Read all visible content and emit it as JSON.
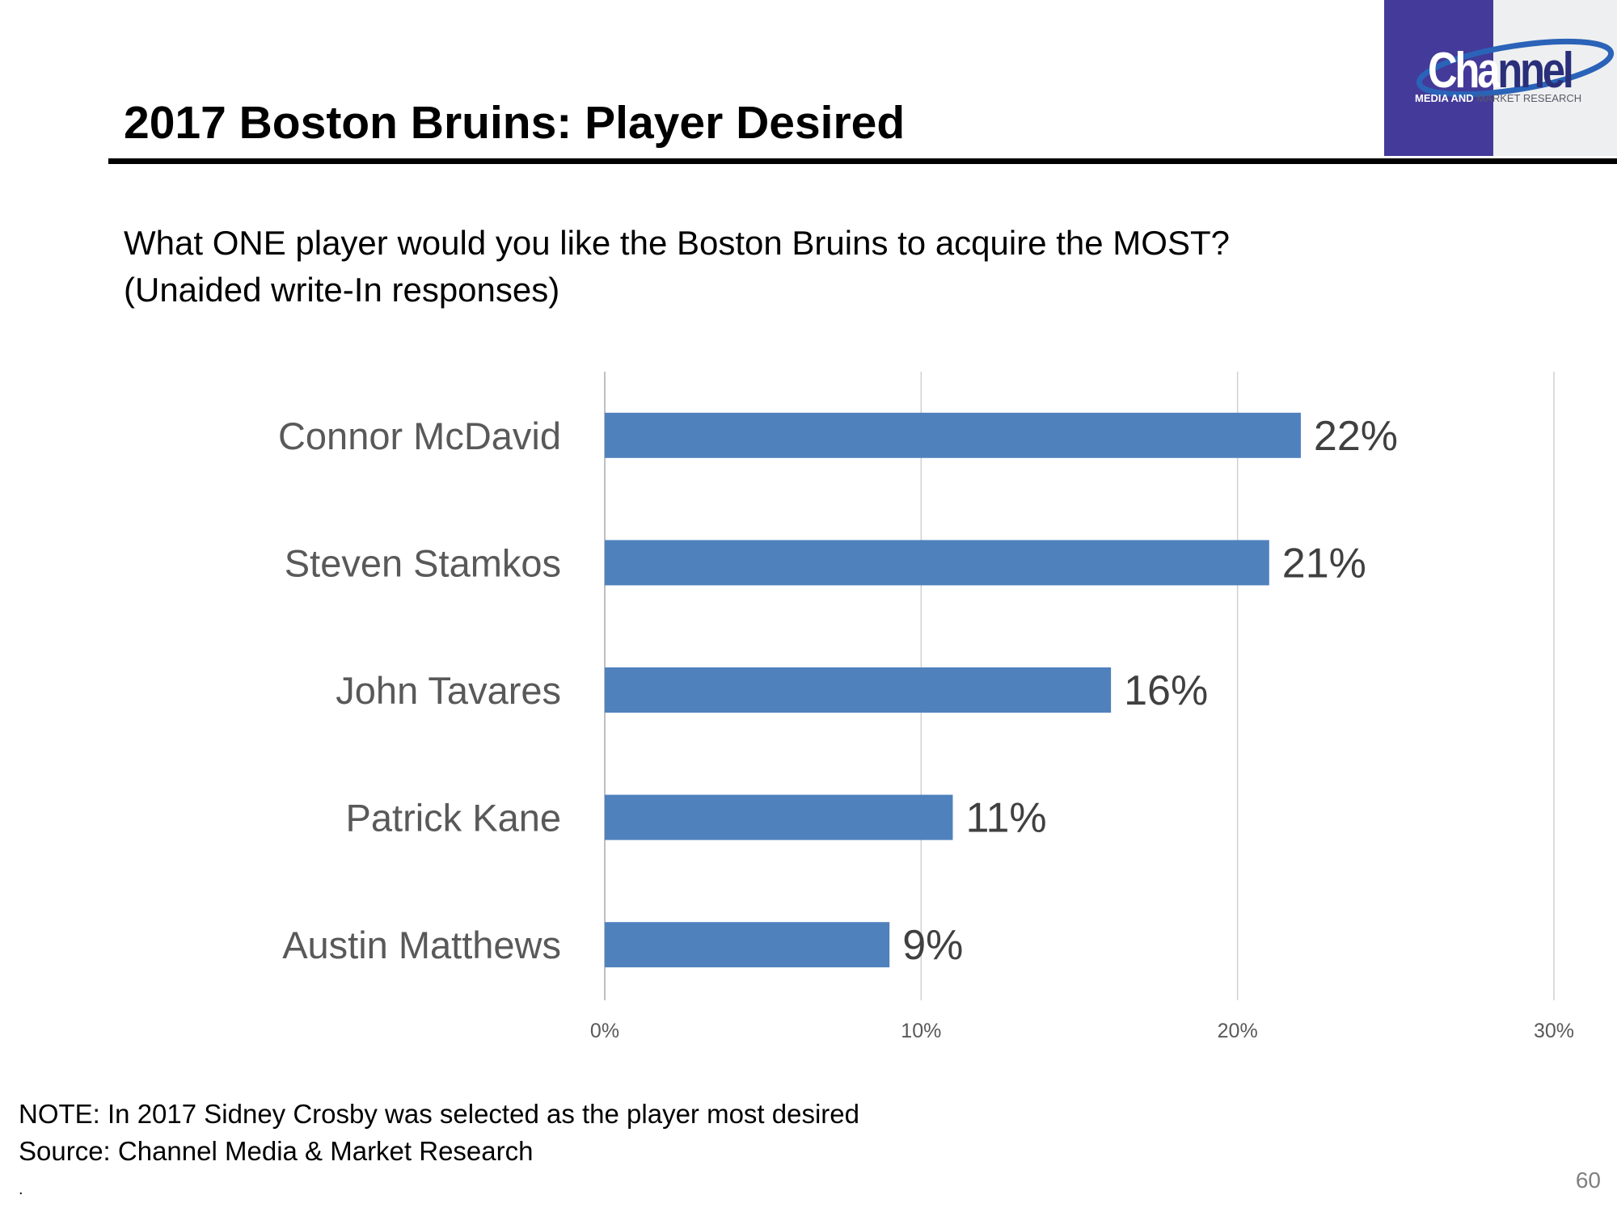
{
  "slide": {
    "title": "2017 Boston Bruins: Player Desired",
    "question_line1": "What ONE player would you like the Boston Bruins to acquire the MOST?",
    "question_line2": "(Unaided write-In responses)",
    "note": "NOTE: In 2017 Sidney Crosby was selected as the player most desired",
    "source": "Source: Channel Media & Market Research",
    "dot": ".",
    "page_number": "60"
  },
  "logo": {
    "word_part1": "Cha",
    "word_part2": "nnel",
    "tagline_part1": "MEDIA AND",
    "tagline_part2": "MARKET RESEARCH",
    "colors": {
      "left_panel": "#433a99",
      "right_panel": "#eeeff0",
      "swoosh": "#2a63b8"
    }
  },
  "chart_data": {
    "type": "bar",
    "orientation": "horizontal",
    "title": "",
    "xlabel": "",
    "ylabel": "",
    "categories": [
      "Connor McDavid",
      "Steven Stamkos",
      "John Tavares",
      "Patrick Kane",
      "Austin Matthews"
    ],
    "values": [
      22,
      21,
      16,
      11,
      9
    ],
    "data_labels": [
      "22%",
      "21%",
      "16%",
      "11%",
      "9%"
    ],
    "xlim": [
      0,
      30
    ],
    "ticks": [
      0,
      10,
      20,
      30
    ],
    "tick_labels": [
      "0%",
      "10%",
      "20%",
      "30%"
    ],
    "grid": true,
    "legend": "none",
    "bar_color": "#4f81bd"
  }
}
